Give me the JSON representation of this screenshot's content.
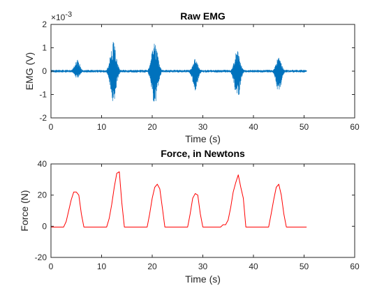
{
  "chart_data": [
    {
      "type": "line",
      "title": "Raw EMG",
      "xlabel": "Time (s)",
      "ylabel": "EMG (V)",
      "exponent_label": "×10",
      "exponent_power": "-3",
      "xlim": [
        0,
        60
      ],
      "ylim": [
        -2,
        2
      ],
      "xticks": [
        0,
        10,
        20,
        30,
        40,
        50,
        60
      ],
      "yticks": [
        -2,
        -1,
        0,
        1,
        2
      ],
      "grid": false,
      "series": [
        {
          "name": "EMG",
          "color": "#0072BD",
          "x_range": [
            0,
            50.5
          ],
          "noise_amplitude": 0.05,
          "bursts": [
            {
              "center": 5.2,
              "width": 1.6,
              "pos_peak": 0.5,
              "neg_peak": -0.3
            },
            {
              "center": 12.3,
              "width": 1.8,
              "pos_peak": 1.2,
              "neg_peak": -1.3
            },
            {
              "center": 20.5,
              "width": 1.8,
              "pos_peak": 1.3,
              "neg_peak": -1.4
            },
            {
              "center": 28.5,
              "width": 1.6,
              "pos_peak": 0.5,
              "neg_peak": -0.8
            },
            {
              "center": 36.8,
              "width": 1.7,
              "pos_peak": 0.9,
              "neg_peak": -1.3
            },
            {
              "center": 45.0,
              "width": 1.6,
              "pos_peak": 0.6,
              "neg_peak": -0.9
            }
          ]
        }
      ]
    },
    {
      "type": "line",
      "title": "Force, in Newtons",
      "xlabel": "Time (s)",
      "ylabel": "Force (N)",
      "xlim": [
        0,
        60
      ],
      "ylim": [
        -20,
        40
      ],
      "xticks": [
        0,
        10,
        20,
        30,
        40,
        50,
        60
      ],
      "yticks": [
        -20,
        0,
        20,
        40
      ],
      "grid": false,
      "series": [
        {
          "name": "Force",
          "color": "#FF0000",
          "x": [
            0,
            2.5,
            3.0,
            3.5,
            4.0,
            4.5,
            5.0,
            5.5,
            6.0,
            6.5,
            7.0,
            11.0,
            11.5,
            12.0,
            12.5,
            13.0,
            13.5,
            14.0,
            14.5,
            19.0,
            19.5,
            20.0,
            20.5,
            21.0,
            21.5,
            22.0,
            22.5,
            27.0,
            27.5,
            28.0,
            28.5,
            29.0,
            29.5,
            30.0,
            33.5,
            34.0,
            34.5,
            35.0,
            35.5,
            36.0,
            36.5,
            37.0,
            37.5,
            38.0,
            38.5,
            43.0,
            43.5,
            44.0,
            44.5,
            45.0,
            45.5,
            46.0,
            46.5,
            50.5
          ],
          "y": [
            -0.5,
            -0.5,
            3,
            10,
            17,
            22,
            22,
            20,
            8,
            -0.5,
            -0.5,
            -0.5,
            5,
            14,
            25,
            34,
            35,
            15,
            -0.5,
            -0.5,
            8,
            18,
            25,
            27,
            24,
            12,
            -0.5,
            -0.5,
            8,
            18,
            21,
            20,
            8,
            -0.5,
            -0.5,
            1,
            1,
            4,
            12,
            22,
            28,
            33,
            25,
            18,
            -0.5,
            -0.5,
            8,
            17,
            25,
            27,
            20,
            8,
            -0.5,
            -0.5
          ]
        }
      ]
    }
  ]
}
